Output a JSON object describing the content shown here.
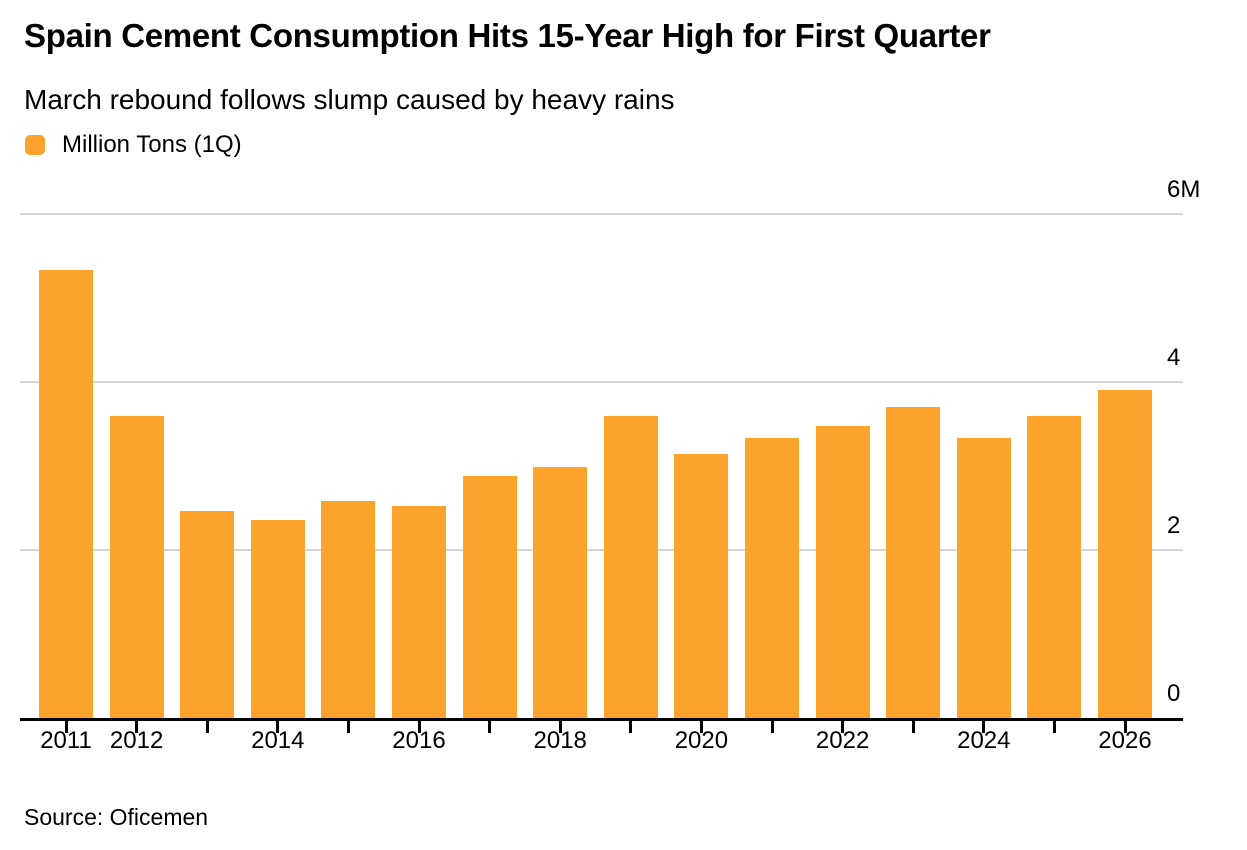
{
  "header": {
    "title": "Spain Cement Consumption Hits 15-Year High for First Quarter",
    "subtitle": "March rebound follows slump caused by heavy rains"
  },
  "legend": {
    "label": "Million Tons (1Q)",
    "swatch_color": "#FCA32C"
  },
  "chart_data": {
    "type": "bar",
    "title": "Spain Cement Consumption Hits 15-Year High for First Quarter",
    "subtitle": "March rebound follows slump caused by heavy rains",
    "series_name": "Million Tons (1Q)",
    "categories": [
      "2011",
      "2012",
      "2013",
      "2014",
      "2015",
      "2016",
      "2017",
      "2018",
      "2019",
      "2020",
      "2021",
      "2022",
      "2023",
      "2024",
      "2025",
      "2026"
    ],
    "values": [
      5.33,
      3.6,
      2.46,
      2.36,
      2.58,
      2.52,
      2.88,
      2.99,
      3.6,
      3.14,
      3.33,
      3.48,
      3.7,
      3.33,
      3.6,
      3.91
    ],
    "xlabel": "",
    "ylabel": "Million Tons",
    "ylim": [
      0,
      6
    ],
    "yticks": [
      {
        "value": 6,
        "label": "6M"
      },
      {
        "value": 4,
        "label": "4"
      },
      {
        "value": 2,
        "label": "2"
      },
      {
        "value": 0,
        "label": "0"
      }
    ],
    "x_tick_labels_shown": [
      "2011",
      "2012",
      "2014",
      "2016",
      "2018",
      "2020",
      "2022",
      "2024",
      "2026"
    ],
    "bar_color": "#FCA32C",
    "gridline_color": "#d6d6d6",
    "grid": "horizontal",
    "legend_position": "top-left",
    "y_axis_side": "right"
  },
  "footer": {
    "source": "Source: Oficemen"
  }
}
